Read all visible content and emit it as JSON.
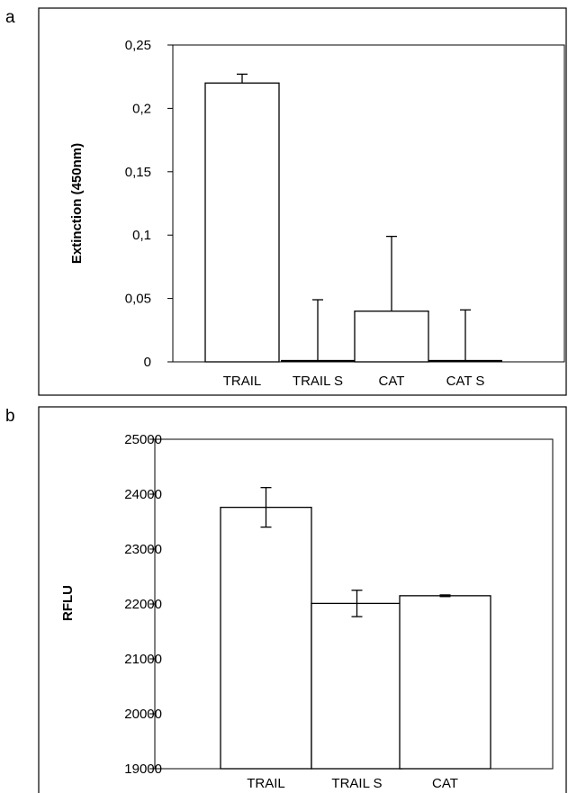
{
  "chart_data": [
    {
      "type": "bar",
      "panel_label": "a",
      "categories": [
        "TRAIL",
        "TRAIL S",
        "CAT",
        "CAT S"
      ],
      "values": [
        0.22,
        0.0,
        0.04,
        0.0
      ],
      "error_upper": [
        0.007,
        0.049,
        0.059,
        0.041
      ],
      "error_lower": [
        0,
        0,
        0,
        0
      ],
      "ylabel": "Extinction (450nm)",
      "xlabel": "",
      "ylim": [
        0,
        0.25
      ],
      "yticks": [
        0,
        0.05,
        0.1,
        0.15,
        0.2,
        0.25
      ],
      "ytick_labels": [
        "0",
        "0,05",
        "0,1",
        "0,15",
        "0,2",
        "0,25"
      ],
      "grid": false,
      "bar_color": "#ffffff",
      "edge_color": "#000000"
    },
    {
      "type": "bar",
      "panel_label": "b",
      "categories": [
        "TRAIL",
        "TRAIL S",
        "CAT"
      ],
      "values": [
        23760,
        22010,
        22150
      ],
      "error_upper": [
        360,
        240,
        15
      ],
      "error_lower": [
        360,
        240,
        15
      ],
      "ylabel": "RFLU",
      "xlabel": "",
      "ylim": [
        19000,
        25000
      ],
      "yticks": [
        19000,
        20000,
        21000,
        22000,
        23000,
        24000,
        25000
      ],
      "ytick_labels": [
        "19000",
        "20000",
        "21000",
        "22000",
        "23000",
        "24000",
        "25000"
      ],
      "grid": false,
      "bar_color": "#ffffff",
      "edge_color": "#000000"
    }
  ]
}
